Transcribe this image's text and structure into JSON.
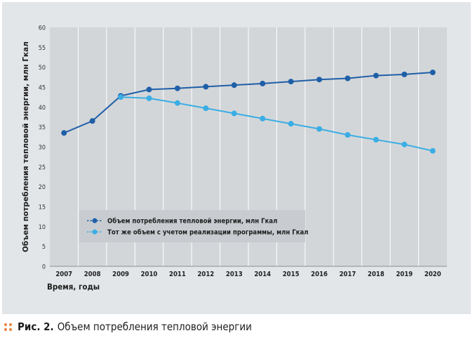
{
  "caption": {
    "label": "Рис. 2.",
    "text": "Объем потребления тепловой энергии"
  },
  "chart_data": {
    "type": "line",
    "title": "",
    "xlabel": "Время, годы",
    "ylabel": "Объем потребления тепловой энергии, млн Гкал",
    "categories": [
      "2007",
      "2008",
      "2009",
      "2010",
      "2011",
      "2012",
      "2013",
      "2014",
      "2015",
      "2016",
      "2017",
      "2018",
      "2019",
      "2020"
    ],
    "ylim": [
      0,
      60
    ],
    "yticks": [
      "0",
      "5",
      "10",
      "15",
      "20",
      "25",
      "30",
      "35",
      "40",
      "45",
      "50",
      "55",
      "60"
    ],
    "grid": "vertical",
    "legend_position": "bottom-left",
    "series": [
      {
        "name": "Объем потребления тепловой энергии, млн Гкал",
        "color": "#1f5fa8",
        "values": [
          33.5,
          36.5,
          42.8,
          44.4,
          44.7,
          45.1,
          45.5,
          45.9,
          46.4,
          46.9,
          47.2,
          47.9,
          48.2,
          48.7
        ]
      },
      {
        "name": "Тот же объем с учетом реализации программы, млн Гкал",
        "color": "#3aaee4",
        "values": [
          null,
          null,
          42.5,
          42.2,
          41.0,
          39.7,
          38.4,
          37.1,
          35.8,
          34.5,
          33.0,
          31.8,
          30.6,
          29.0
        ]
      }
    ]
  },
  "colors": {
    "panel_background": "#e3e6e9",
    "plot_background": "#d3d6d9",
    "legend_background": "#c8ccd0",
    "caption_dots": "#e8843c"
  }
}
